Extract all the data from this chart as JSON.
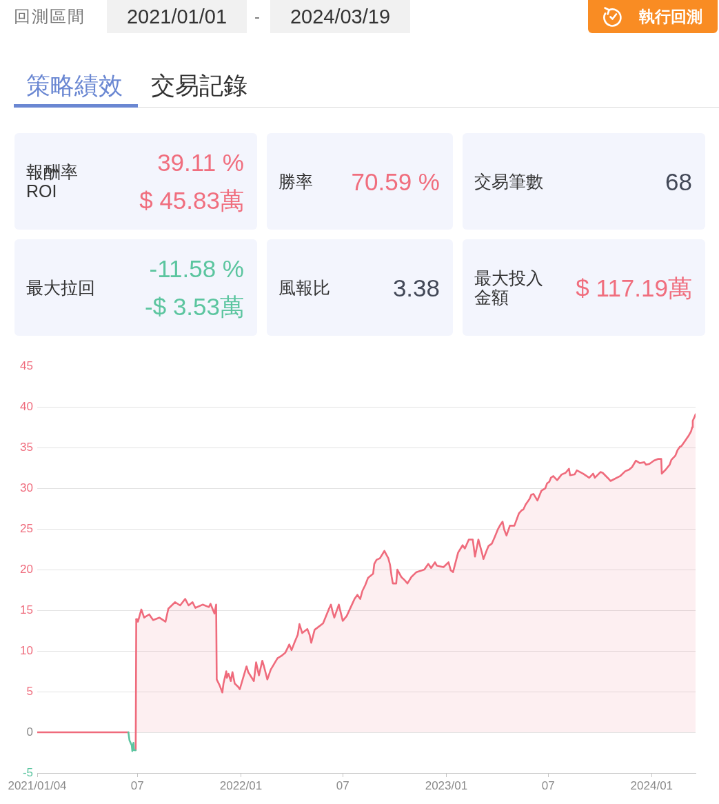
{
  "chart_data": [
    {
      "type": "other",
      "annotations": [
        "回測區間",
        "2021/01/01",
        "-",
        "2024/03/19",
        "執行回測",
        "策略績效",
        "交易記錄",
        "報酬率",
        "ROI",
        "39.11 %",
        "$ 45.83萬",
        "勝率",
        "70.59 %",
        "交易筆數",
        "68",
        "最大拉回",
        "-11.58 %",
        "-$ 3.53萬",
        "風報比",
        "3.38",
        "最大投入金額",
        "$ 117.19萬"
      ]
    },
    {
      "type": "area",
      "x": [
        "2021-06-29",
        "2021-07-01",
        "2021-07-02",
        "2021-07-08",
        "2021-07-13",
        "2021-07-22",
        "2021-07-29",
        "2021-08-09",
        "2021-08-20",
        "2021-08-25",
        "2021-09-06",
        "2021-09-15",
        "2021-09-24",
        "2021-09-30",
        "2021-10-07",
        "2021-10-12",
        "2021-10-25",
        "2021-11-05",
        "2021-11-08",
        "2021-11-15",
        "2021-11-18",
        "2021-11-19",
        "2021-11-24",
        "2021-11-29",
        "2021-12-01",
        "2021-12-06",
        "2021-12-07",
        "2021-12-10",
        "2021-12-14",
        "2021-12-17",
        "2021-12-21",
        "2021-12-27",
        "2021-12-30",
        "2022-01-05",
        "2022-01-11",
        "2022-01-14",
        "2022-01-24",
        "2022-01-28",
        "2022-02-02",
        "2022-02-08",
        "2022-02-11",
        "2022-02-17",
        "2022-02-23",
        "2022-03-07",
        "2022-03-14",
        "2022-03-21",
        "2022-03-28",
        "2022-04-01",
        "2022-04-06",
        "2022-04-12",
        "2022-04-15",
        "2022-04-20",
        "2022-04-29",
        "2022-05-03",
        "2022-05-06",
        "2022-05-12",
        "2022-05-27",
        "2022-06-06",
        "2022-06-10",
        "2022-06-13",
        "2022-06-16",
        "2022-06-24",
        "2022-07-01",
        "2022-07-08",
        "2022-07-18",
        "2022-07-22",
        "2022-07-27",
        "2022-08-01",
        "2022-08-05",
        "2022-08-10",
        "2022-08-15",
        "2022-08-24",
        "2022-08-26",
        "2022-08-30",
        "2022-09-05",
        "2022-09-13",
        "2022-09-16",
        "2022-09-20",
        "2022-09-23",
        "2022-09-26",
        "2022-09-28",
        "2022-10-04",
        "2022-10-06",
        "2022-10-13",
        "2022-10-19",
        "2022-10-24",
        "2022-10-31",
        "2022-11-09",
        "2022-11-23",
        "2022-11-30",
        "2022-12-05",
        "2022-12-12",
        "2022-12-15",
        "2022-12-27",
        "2023-01-05",
        "2023-01-09",
        "2023-01-13",
        "2023-01-22",
        "2023-01-30",
        "2023-02-03",
        "2023-02-10",
        "2023-02-17",
        "2023-02-21",
        "2023-02-27",
        "2023-03-06",
        "2023-03-08",
        "2023-03-14",
        "2023-03-17",
        "2023-03-23",
        "2023-03-28",
        "2023-04-03",
        "2023-04-07",
        "2023-04-11",
        "2023-04-14",
        "2023-04-18",
        "2023-04-24",
        "2023-05-02",
        "2023-05-10",
        "2023-05-15",
        "2023-05-18",
        "2023-05-22",
        "2023-05-29",
        "2023-06-01",
        "2023-06-05",
        "2023-06-12",
        "2023-06-19",
        "2023-06-26",
        "2023-06-29",
        "2023-07-03",
        "2023-07-06",
        "2023-07-10",
        "2023-07-17",
        "2023-07-25",
        "2023-08-01",
        "2023-08-07",
        "2023-08-09",
        "2023-08-17",
        "2023-08-21",
        "2023-09-01",
        "2023-09-12",
        "2023-09-19",
        "2023-09-22",
        "2023-10-02",
        "2023-10-06",
        "2023-10-16",
        "2023-10-20",
        "2023-11-06",
        "2023-11-15",
        "2023-11-22",
        "2023-11-27",
        "2023-12-04",
        "2023-12-11",
        "2023-12-19",
        "2023-12-22",
        "2023-12-28",
        "2024-01-05",
        "2024-01-12",
        "2024-01-18",
        "2024-01-19",
        "2024-01-26",
        "2024-02-02",
        "2024-02-05",
        "2024-02-12",
        "2024-02-16",
        "2024-02-20",
        "2024-02-23",
        "2024-02-28",
        "2024-03-04",
        "2024-03-07",
        "2024-03-11",
        "2024-03-13",
        "2024-03-14",
        "2024-03-18",
        "2024-03-19"
      ],
      "series": [
        {
          "color": "#ef6b7c",
          "values": [
            13.9,
            13.9,
            13.6,
            15.1,
            14.1,
            14.5,
            13.8,
            14.1,
            13.6,
            15.2,
            16.0,
            15.6,
            16.4,
            15.6,
            16.0,
            15.3,
            15.7,
            15.4,
            15.8,
            14.6,
            15.7,
            6.5,
            5.8,
            4.9,
            6.0,
            7.5,
            6.7,
            7.2,
            6.3,
            7.4,
            6.0,
            5.6,
            5.3,
            6.7,
            8.1,
            7.4,
            6.3,
            8.6,
            7.0,
            8.8,
            8.1,
            6.5,
            7.7,
            9.1,
            9.4,
            9.8,
            10.8,
            10.1,
            11.0,
            12.0,
            13.3,
            12.2,
            12.7,
            12.0,
            11.0,
            12.6,
            13.4,
            15.1,
            15.7,
            14.8,
            14.1,
            15.7,
            13.7,
            14.3,
            15.8,
            16.4,
            16.9,
            16.4,
            17.4,
            18.1,
            19.0,
            19.5,
            20.7,
            21.2,
            21.4,
            22.3,
            21.9,
            21.4,
            20.6,
            19.1,
            18.3,
            18.3,
            20.0,
            19.1,
            18.7,
            18.3,
            19.1,
            19.7,
            20.0,
            20.7,
            20.2,
            20.9,
            20.5,
            20.3,
            20.9,
            19.9,
            19.7,
            22.1,
            23.0,
            22.6,
            23.7,
            23.7,
            21.6,
            23.7,
            21.9,
            21.3,
            22.4,
            22.9,
            23.2,
            24.0,
            25.0,
            25.5,
            25.9,
            24.9,
            24.2,
            25.4,
            25.4,
            26.9,
            27.3,
            27.4,
            28.0,
            28.7,
            29.2,
            29.3,
            28.5,
            29.7,
            30.0,
            30.6,
            30.8,
            31.3,
            31.5,
            31.0,
            31.7,
            31.9,
            32.4,
            31.6,
            31.7,
            32.2,
            31.8,
            31.3,
            31.8,
            31.3,
            32.0,
            31.9,
            31.2,
            30.9,
            31.5,
            32.1,
            32.3,
            32.6,
            33.4,
            33.1,
            33.2,
            32.9,
            33.0,
            33.4,
            33.6,
            33.6,
            31.8,
            32.3,
            32.9,
            33.5,
            34.0,
            34.7,
            35.1,
            35.2,
            35.7,
            36.2,
            36.5,
            37.0,
            37.5,
            38.3,
            38.9,
            39.1
          ]
        },
        {
          "type": "line",
          "color": "#ef6b7c",
          "x": [
            "2021-01-04",
            "2021-06-15",
            "2021-06-17",
            "2021-06-28",
            "2021-06-29"
          ],
          "values": [
            0,
            0,
            null,
            -2.2,
            13.9
          ]
        },
        {
          "type": "line",
          "color": "#5cc5a0",
          "x": [
            "2021-06-15",
            "2021-06-17",
            "2021-06-21",
            "2021-06-22",
            "2021-06-24",
            "2021-06-25",
            "2021-06-28"
          ],
          "values": [
            0,
            -1.0,
            -1.6,
            -2.3,
            -1.3,
            -2.2,
            -2.2
          ]
        }
      ],
      "xlim": [
        "2021-01-04",
        "2024-03-19"
      ],
      "xticks": [
        {
          "value": "2021-01-04",
          "label": "2021/01/04"
        },
        {
          "value": "2021-07-01",
          "label": "07"
        },
        {
          "value": "2022-01-01",
          "label": "2022/01"
        },
        {
          "value": "2022-07-01",
          "label": "07"
        },
        {
          "value": "2023-01-01",
          "label": "2023/01"
        },
        {
          "value": "2023-07-01",
          "label": "07"
        },
        {
          "value": "2024-01-01",
          "label": "2024/01"
        }
      ],
      "ylim": [
        -5,
        45
      ],
      "yticks": [
        -5,
        0,
        5,
        10,
        15,
        20,
        25,
        30,
        35,
        40,
        45
      ],
      "grid": "y",
      "marker": "none"
    }
  ]
}
